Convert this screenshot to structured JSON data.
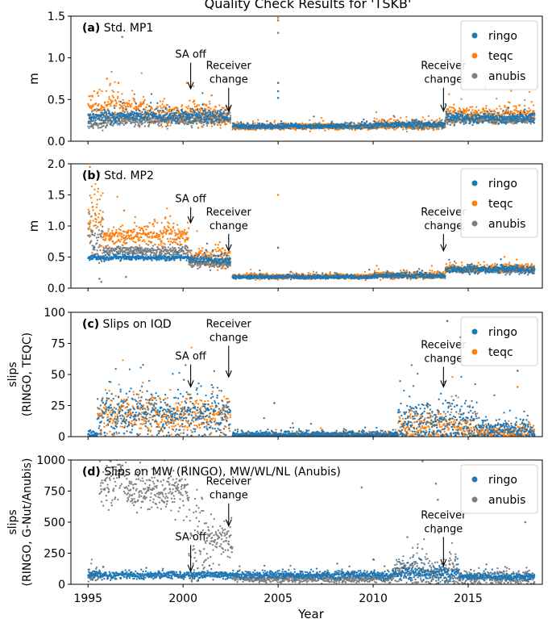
{
  "figure_title": "Quality Check Results for 'TSKB'",
  "x_axis_label": "Year",
  "x_ticks": [
    1995,
    2000,
    2005,
    2010,
    2015
  ],
  "colors": {
    "ringo": "#1f77b4",
    "teqc": "#ff7f0e",
    "anubis": "#7f7f7f"
  },
  "chart_data": [
    {
      "type": "scatter",
      "panel": "(a)",
      "title": "Std. MP1",
      "ylabel": "m",
      "xlim": [
        1994.1,
        2018.9
      ],
      "ylim": [
        0.0,
        1.5
      ],
      "yticks": [
        0.0,
        0.5,
        1.0,
        1.5
      ],
      "yticklabels": [
        "0.0",
        "0.5",
        "1.0",
        "1.5"
      ],
      "legend": [
        "ringo",
        "teqc",
        "anubis"
      ],
      "legend_position": "top-right",
      "annotations": [
        {
          "text": [
            "SA off"
          ],
          "x": 2000.4,
          "y_text": 1.0,
          "arrow_to": 0.63
        },
        {
          "text": [
            "Receiver",
            "change"
          ],
          "x": 2002.4,
          "y_text": 0.7,
          "arrow_to": 0.36
        },
        {
          "text": [
            "Receiver",
            "change"
          ],
          "x": 2013.7,
          "y_text": 0.7,
          "arrow_to": 0.36
        }
      ],
      "series": [
        {
          "name": "ringo",
          "segments": [
            [
              1995.0,
              2002.5,
              0.3,
              0.04
            ],
            [
              2002.6,
              2010.0,
              0.18,
              0.015
            ],
            [
              2010.0,
              2013.8,
              0.2,
              0.02
            ],
            [
              2013.8,
              2018.5,
              0.28,
              0.03
            ]
          ],
          "outliers": [
            [
              2005.0,
              0.7
            ],
            [
              2005.0,
              0.6
            ],
            [
              2005.0,
              0.52
            ]
          ]
        },
        {
          "name": "teqc",
          "segments": [
            [
              1995.0,
              1998.0,
              0.4,
              0.08
            ],
            [
              1998.0,
              2002.5,
              0.33,
              0.06
            ],
            [
              2002.6,
              2010.0,
              0.18,
              0.02
            ],
            [
              2010.0,
              2013.8,
              0.2,
              0.03
            ],
            [
              2013.8,
              2018.5,
              0.32,
              0.04
            ]
          ],
          "outliers": [
            [
              2005.0,
              1.48
            ],
            [
              1996.0,
              0.75
            ],
            [
              1996.6,
              0.7
            ],
            [
              2000.2,
              0.7
            ],
            [
              2001.5,
              0.55
            ]
          ]
        },
        {
          "name": "anubis",
          "segments": [
            [
              1995.0,
              1996.0,
              0.22,
              0.04
            ],
            [
              1996.0,
              2002.5,
              0.25,
              0.03
            ],
            [
              2002.6,
              2010.0,
              0.17,
              0.01
            ],
            [
              2010.0,
              2013.8,
              0.18,
              0.015
            ],
            [
              2013.8,
              2018.5,
              0.25,
              0.02
            ]
          ],
          "outliers": [
            [
              1996.8,
              1.25
            ],
            [
              2005.0,
              1.3
            ],
            [
              2005.0,
              1.45
            ]
          ]
        }
      ]
    },
    {
      "type": "scatter",
      "panel": "(b)",
      "title": "Std. MP2",
      "ylabel": "m",
      "xlim": [
        1994.1,
        2018.9
      ],
      "ylim": [
        0.0,
        2.0
      ],
      "yticks": [
        0.0,
        0.5,
        1.0,
        1.5,
        2.0
      ],
      "yticklabels": [
        "0.0",
        "0.5",
        "1.0",
        "1.5",
        "2.0"
      ],
      "legend": [
        "ringo",
        "teqc",
        "anubis"
      ],
      "legend_position": "top-right",
      "annotations": [
        {
          "text": [
            "SA off"
          ],
          "x": 2000.4,
          "y_text": 1.38,
          "arrow_to": 1.05
        },
        {
          "text": [
            "Receiver",
            "change"
          ],
          "x": 2002.4,
          "y_text": 0.95,
          "arrow_to": 0.6
        },
        {
          "text": [
            "Receiver",
            "change"
          ],
          "x": 2013.7,
          "y_text": 0.95,
          "arrow_to": 0.6
        }
      ],
      "series": [
        {
          "name": "ringo",
          "segments": [
            [
              1995.0,
              2000.3,
              0.49,
              0.02
            ],
            [
              2000.3,
              2002.5,
              0.45,
              0.04
            ],
            [
              2002.6,
              2010.0,
              0.18,
              0.015
            ],
            [
              2010.0,
              2013.8,
              0.2,
              0.02
            ],
            [
              2013.8,
              2018.5,
              0.3,
              0.03
            ]
          ],
          "outliers": [
            [
              2005.0,
              0.65
            ]
          ]
        },
        {
          "name": "teqc",
          "segments": [
            [
              1995.0,
              1995.8,
              1.1,
              0.3
            ],
            [
              1995.8,
              2000.3,
              0.85,
              0.08
            ],
            [
              2000.3,
              2002.5,
              0.5,
              0.08
            ],
            [
              2002.6,
              2010.0,
              0.19,
              0.02
            ],
            [
              2010.0,
              2013.8,
              0.21,
              0.03
            ],
            [
              2013.8,
              2018.5,
              0.32,
              0.03
            ]
          ],
          "outliers": [
            [
              1995.1,
              1.95
            ],
            [
              2005.0,
              1.5
            ],
            [
              1996.9,
              1.25
            ],
            [
              1998.5,
              1.1
            ]
          ]
        },
        {
          "name": "anubis",
          "segments": [
            [
              1995.0,
              1995.8,
              0.85,
              0.2
            ],
            [
              1995.8,
              2000.3,
              0.6,
              0.04
            ],
            [
              2000.3,
              2002.5,
              0.4,
              0.04
            ],
            [
              2002.6,
              2010.0,
              0.18,
              0.01
            ],
            [
              2010.0,
              2013.8,
              0.19,
              0.015
            ],
            [
              2013.8,
              2018.5,
              0.29,
              0.02
            ]
          ],
          "outliers": [
            [
              1995.6,
              0.15
            ],
            [
              1995.7,
              0.1
            ],
            [
              1997.0,
              0.18
            ]
          ]
        }
      ]
    },
    {
      "type": "scatter",
      "panel": "(c)",
      "title": "Slips on IOD",
      "ylabel": [
        "slips",
        "(RINGO, TEQC)"
      ],
      "xlim": [
        1994.1,
        2018.9
      ],
      "ylim": [
        0,
        100
      ],
      "yticks": [
        0,
        25,
        50,
        75,
        100
      ],
      "yticklabels": [
        "0",
        "25",
        "50",
        "75",
        "100"
      ],
      "legend": [
        "ringo",
        "teqc"
      ],
      "legend_position": "top-right",
      "annotations": [
        {
          "text": [
            "SA off"
          ],
          "x": 2000.4,
          "y_text": 62,
          "arrow_to": 40
        },
        {
          "text": [
            "Receiver",
            "change"
          ],
          "x": 2002.4,
          "y_text": 77,
          "arrow_to": 48
        },
        {
          "text": [
            "Receiver",
            "change"
          ],
          "x": 2013.7,
          "y_text": 60,
          "arrow_to": 40
        }
      ],
      "series": [
        {
          "name": "ringo",
          "segments": [
            [
              1995.0,
              1995.5,
              2,
              2
            ],
            [
              1995.5,
              2002.5,
              18,
              9
            ],
            [
              2002.6,
              2011.3,
              1.5,
              1.5
            ],
            [
              2011.3,
              2015.5,
              12,
              9
            ],
            [
              2015.5,
              2018.5,
              6,
              4
            ]
          ],
          "outliers": [
            [
              2013.9,
              93
            ],
            [
              2014.6,
              80
            ],
            [
              2015.3,
              80
            ],
            [
              2017.6,
              53
            ],
            [
              2004.8,
              27
            ]
          ]
        },
        {
          "name": "teqc",
          "segments": [
            [
              1995.5,
              2002.5,
              17,
              8
            ],
            [
              2002.6,
              2011.3,
              1,
              1
            ],
            [
              2011.3,
              2015.5,
              8,
              6
            ],
            [
              2015.5,
              2018.5,
              4,
              3
            ]
          ],
          "outliers": [
            [
              2017.6,
              40
            ]
          ]
        }
      ]
    },
    {
      "type": "scatter",
      "panel": "(d)",
      "title": "Slips on MW (RINGO), MW/WL/NL (Anubis)",
      "ylabel": [
        "slips",
        "(RINGO, G-Nut/Anubis)"
      ],
      "xlim": [
        1994.1,
        2018.9
      ],
      "ylim": [
        0,
        1000
      ],
      "yticks": [
        0,
        250,
        500,
        750,
        1000
      ],
      "yticklabels": [
        "0",
        "250",
        "500",
        "750",
        "1000"
      ],
      "legend": [
        "ringo",
        "anubis"
      ],
      "legend_position": "top-right",
      "annotations": [
        {
          "text": [
            "SA off"
          ],
          "x": 2000.4,
          "y_text": 355,
          "arrow_to": 105
        },
        {
          "text": [
            "Receiver",
            "change"
          ],
          "x": 2002.4,
          "y_text": 690,
          "arrow_to": 470
        },
        {
          "text": [
            "Receiver",
            "change"
          ],
          "x": 2013.7,
          "y_text": 420,
          "arrow_to": 150
        }
      ],
      "series": [
        {
          "name": "ringo",
          "segments": [
            [
              1995.0,
              2011.5,
              75,
              15
            ],
            [
              2011.5,
              2014.5,
              90,
              30
            ],
            [
              2014.5,
              2018.5,
              60,
              15
            ]
          ],
          "outliers": [
            [
              1995.8,
              140
            ],
            [
              2012.5,
              200
            ]
          ]
        },
        {
          "name": "anubis",
          "segments": [
            [
              1995.0,
              1995.6,
              60,
              20
            ],
            [
              1995.6,
              1997.0,
              850,
              120
            ],
            [
              1997.0,
              2000.3,
              740,
              80
            ],
            [
              2000.3,
              2001.2,
              300,
              200
            ],
            [
              2001.2,
              2002.6,
              350,
              90
            ],
            [
              2002.6,
              2011.0,
              45,
              15
            ],
            [
              2011.0,
              2014.5,
              100,
              60
            ],
            [
              2014.5,
              2018.5,
              55,
              30
            ]
          ],
          "outliers": [
            [
              2012.6,
              990
            ],
            [
              2013.3,
              810
            ],
            [
              2013.4,
              680
            ],
            [
              2011.8,
              380
            ],
            [
              2018.0,
              500
            ],
            [
              2009.4,
              780
            ]
          ]
        }
      ]
    }
  ]
}
